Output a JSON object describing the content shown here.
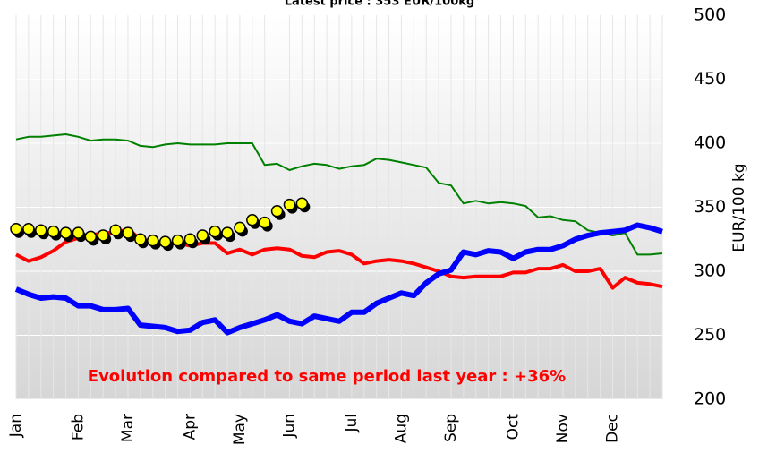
{
  "chart_data": {
    "type": "line",
    "title": "Latest price : 353 EUR/100kg",
    "y_label": "EUR/100 kg",
    "annotation": "Evolution compared to same period last year : +36%",
    "annotation_color": "#ff0000",
    "categories": [
      "Jan",
      null,
      null,
      null,
      null,
      "Feb",
      null,
      null,
      null,
      "Mar",
      null,
      null,
      null,
      null,
      "Apr",
      null,
      null,
      null,
      "May",
      null,
      null,
      null,
      "Jun",
      null,
      null,
      null,
      null,
      "Jul",
      null,
      null,
      null,
      "Aug",
      null,
      null,
      null,
      "Sep",
      null,
      null,
      null,
      null,
      "Oct",
      null,
      null,
      null,
      "Nov",
      null,
      null,
      null,
      "Dec",
      null,
      null,
      null,
      null
    ],
    "ylim": [
      200,
      500
    ],
    "yticks": [
      200,
      250,
      300,
      350,
      400,
      450,
      500
    ],
    "y_axis_side": "right",
    "grid": true,
    "series": [
      {
        "color": "#008000",
        "values": [
          403,
          405,
          405,
          406,
          407,
          405,
          402,
          403,
          403,
          402,
          398,
          397,
          399,
          400,
          399,
          399,
          399,
          400,
          400,
          400,
          383,
          384,
          379,
          382,
          384,
          383,
          380,
          382,
          383,
          388,
          387,
          385,
          383,
          381,
          369,
          367,
          353,
          355,
          353,
          354,
          353,
          351,
          342,
          343,
          340,
          339,
          332,
          330,
          328,
          330,
          313,
          313,
          314
        ]
      },
      {
        "color": "#ff0000",
        "values": [
          313,
          308,
          311,
          316,
          323,
          326,
          328,
          330,
          330,
          333,
          325,
          323,
          321,
          322,
          320,
          322,
          322,
          314,
          317,
          313,
          317,
          318,
          317,
          312,
          311,
          315,
          316,
          313,
          306,
          308,
          309,
          308,
          306,
          303,
          300,
          296,
          295,
          296,
          296,
          296,
          299,
          299,
          302,
          302,
          305,
          300,
          300,
          302,
          287,
          295,
          291,
          290,
          288
        ]
      },
      {
        "color": "#0000ff",
        "values": [
          286,
          282,
          279,
          280,
          279,
          273,
          273,
          270,
          270,
          271,
          258,
          257,
          256,
          253,
          254,
          260,
          262,
          252,
          256,
          259,
          262,
          266,
          261,
          259,
          265,
          263,
          261,
          268,
          268,
          275,
          279,
          283,
          281,
          291,
          298,
          301,
          315,
          313,
          316,
          315,
          310,
          315,
          317,
          317,
          320,
          325,
          328,
          330,
          331,
          332,
          336,
          334,
          331
        ]
      },
      {
        "color": "#ffff00",
        "marker": "circle",
        "values": [
          333,
          333,
          332,
          331,
          330,
          330,
          327,
          328,
          332,
          330,
          325,
          324,
          323,
          324,
          325,
          328,
          331,
          330,
          334,
          340,
          338,
          347,
          352,
          353,
          null,
          null,
          null,
          null,
          null,
          null,
          null,
          null,
          null,
          null,
          null,
          null,
          null,
          null,
          null,
          null,
          null,
          null,
          null,
          null,
          null,
          null,
          null,
          null,
          null,
          null,
          null,
          null,
          null
        ]
      }
    ]
  }
}
